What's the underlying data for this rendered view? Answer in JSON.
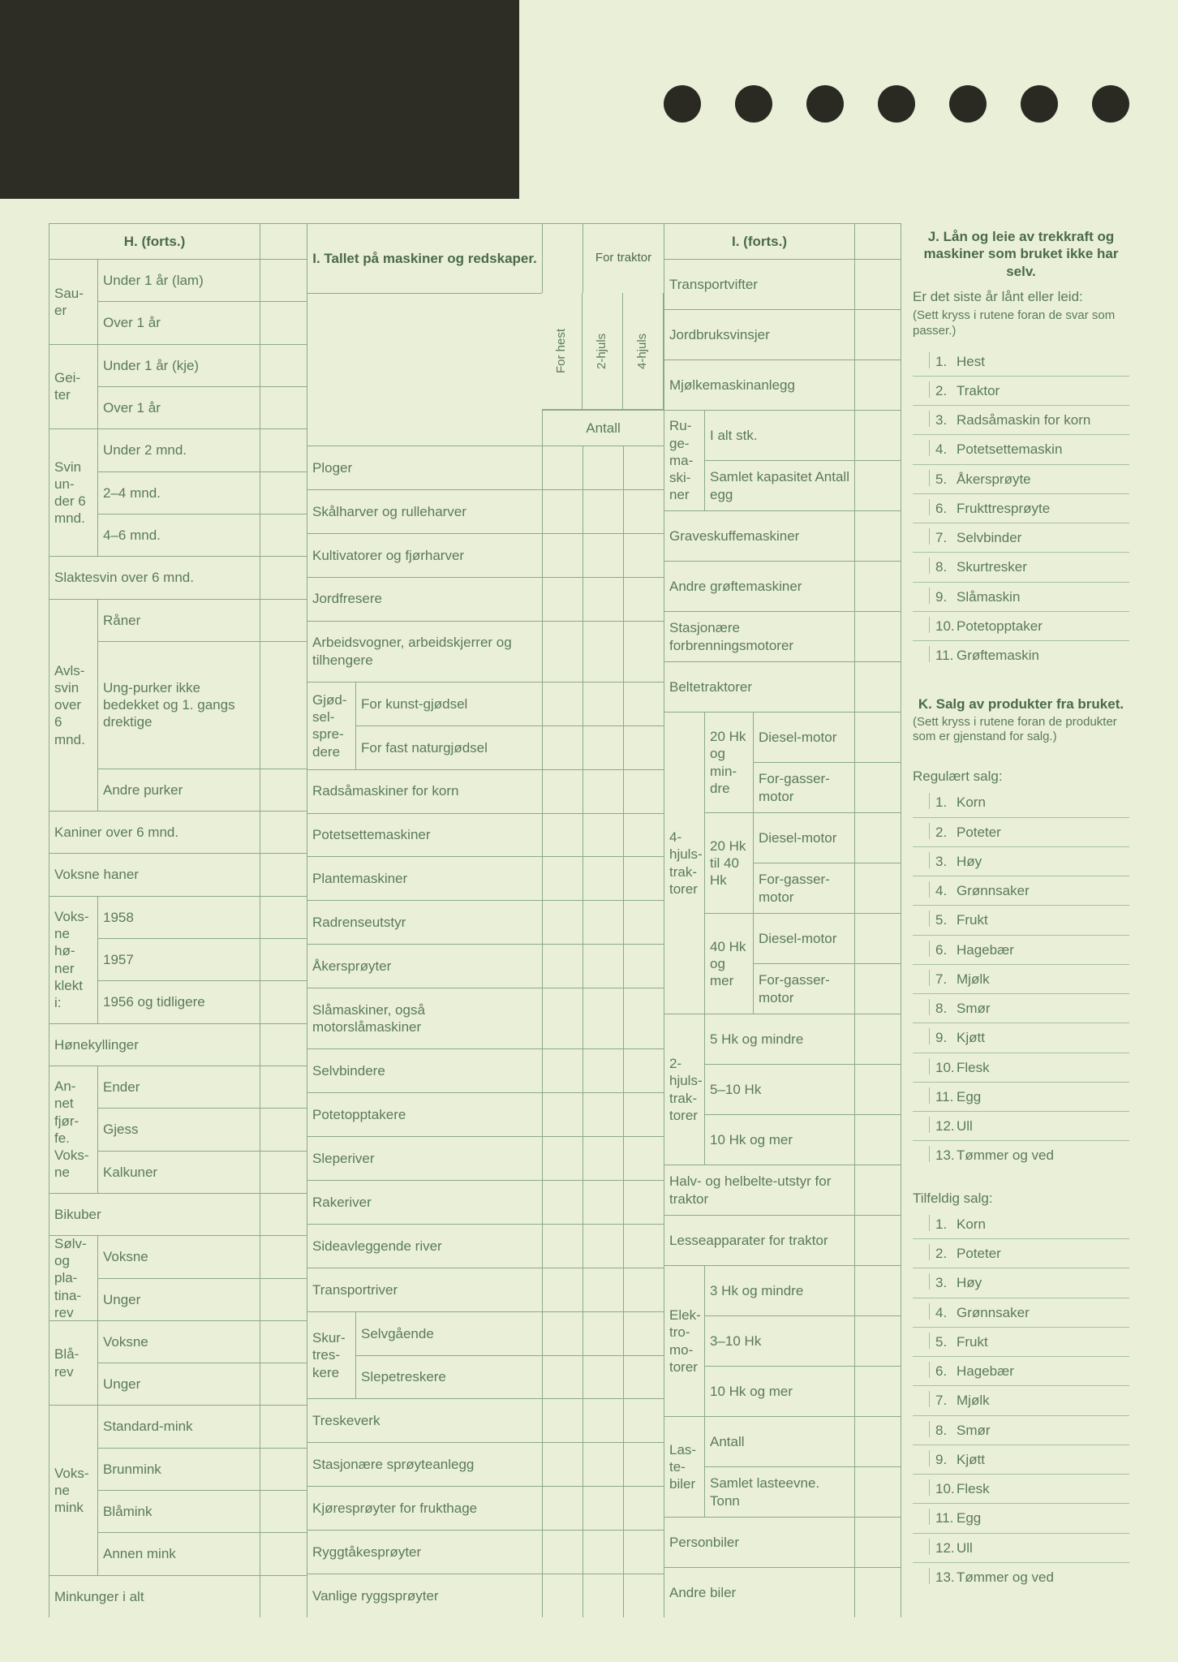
{
  "sections": {
    "H": {
      "title": "H. (forts.)"
    },
    "I": {
      "title": "I. Tallet på maskiner og redskaper.",
      "col_hest": "For hest",
      "for_traktor": "For traktor",
      "col_2hjuls": "2-hjuls",
      "col_4hjuls": "4-hjuls",
      "antall": "Antall"
    },
    "I2": {
      "title": "I. (forts.)"
    },
    "J": {
      "title": "J. Lån og leie av trekkraft og maskiner som bruket ikke har selv.",
      "sub": "Er det siste år lånt eller leid:",
      "hint": "(Sett kryss i rutene foran de svar som passer.)"
    },
    "K": {
      "title": "K. Salg av produkter fra bruket.",
      "hint": "(Sett kryss i rutene foran de produkter som er gjenstand for salg.)",
      "reg": "Regulært salg:",
      "til": "Tilfeldig salg:"
    }
  },
  "colH": [
    {
      "side": "Sau-er",
      "rows": [
        "Under 1 år (lam)",
        "Over 1 år"
      ]
    },
    {
      "side": "Gei-ter",
      "rows": [
        "Under 1 år (kje)",
        "Over 1 år"
      ]
    },
    {
      "side": "Svin un-der 6 mnd.",
      "rows": [
        "Under 2 mnd.",
        "2–4 mnd.",
        "4–6 mnd."
      ]
    },
    {
      "full": "Slaktesvin over 6 mnd."
    },
    {
      "side": "Avls-svin over 6 mnd.",
      "rows": [
        "Råner",
        "Ung-purker ikke bedekket og 1. gangs drektige",
        "Andre purker"
      ]
    },
    {
      "full": "Kaniner over 6 mnd."
    },
    {
      "full": "Voksne haner"
    },
    {
      "side": "Voks-ne hø-ner klekt i:",
      "rows": [
        "1958",
        "1957",
        "1956 og tidligere"
      ]
    },
    {
      "full": "Hønekyllinger"
    },
    {
      "side": "An-net fjør-fe. Voks-ne",
      "rows": [
        "Ender",
        "Gjess",
        "Kalkuner"
      ]
    },
    {
      "full": "Bikuber"
    },
    {
      "side": "Sølv- og pla-tina-rev",
      "rows": [
        "Voksne",
        "Unger"
      ]
    },
    {
      "side": "Blå-rev",
      "rows": [
        "Voksne",
        "Unger"
      ]
    },
    {
      "side": "Voks-ne mink",
      "rows": [
        "Standard-mink",
        "Brunmink",
        "Blåmink",
        "Annen mink"
      ]
    },
    {
      "full": "Minkunger i alt"
    }
  ],
  "colI": [
    "Ploger",
    "Skålharver og rulleharver",
    "Kultivatorer og fjørharver",
    "Jordfresere",
    "Arbeidsvogner, arbeidskjerrer og tilhengere",
    {
      "side": "Gjød-sel-spre-dere",
      "rows": [
        "For kunst-gjødsel",
        "For fast naturgjødsel"
      ]
    },
    "Radsåmaskiner for korn",
    "Potetsettemaskiner",
    "Plantemaskiner",
    "Radrenseutstyr",
    "Åkersprøyter",
    "Slåmaskiner, også motorslåmaskiner",
    "Selvbindere",
    "Potetopptakere",
    "Sleperiver",
    "Rakeriver",
    "Sideavleggende river",
    "Transportriver",
    {
      "side": "Skur-tres-kere",
      "rows": [
        "Selvgående",
        "Slepetreskere"
      ]
    },
    "Treskeverk",
    "Stasjonære sprøyteanlegg",
    "Kjøresprøyter for frukthage",
    "Ryggtåkesprøyter",
    "Vanlige ryggsprøyter"
  ],
  "colI2": [
    "Transportvifter",
    "Jordbruksvinsjer",
    "Mjølkemaskinanlegg",
    {
      "side": "Ru-ge-ma-ski-ner",
      "rows": [
        "I alt stk.",
        "Samlet kapasitet Antall egg"
      ]
    },
    "Graveskuffemaskiner",
    "Andre grøftemaskiner",
    "Stasjonære forbrenningsmotorer",
    "Beltetraktorer",
    {
      "side": "4-hjuls-trak-torer",
      "groups": [
        {
          "g": "20 Hk og min-dre",
          "rows": [
            "Diesel-motor",
            "For-gasser-motor"
          ]
        },
        {
          "g": "20 Hk til 40 Hk",
          "rows": [
            "Diesel-motor",
            "For-gasser-motor"
          ]
        },
        {
          "g": "40 Hk og mer",
          "rows": [
            "Diesel-motor",
            "For-gasser-motor"
          ]
        }
      ]
    },
    {
      "side": "2-hjuls-trak-torer",
      "rows": [
        "5 Hk og mindre",
        "5–10 Hk",
        "10 Hk og mer"
      ]
    },
    "Halv- og helbelte-utstyr for traktor",
    "Lesseapparater for traktor",
    {
      "side": "Elek-tro-mo-torer",
      "rows": [
        "3 Hk og mindre",
        "3–10 Hk",
        "10 Hk og mer"
      ]
    },
    {
      "side": "Las-te-biler",
      "rows": [
        "Antall",
        "Samlet lasteevne. Tonn"
      ]
    },
    "Personbiler",
    "Andre biler"
  ],
  "listJ": [
    "Hest",
    "Traktor",
    "Radsåmaskin for korn",
    "Potetsettemaskin",
    "Åkersprøyte",
    "Frukttresprøyte",
    "Selvbinder",
    "Skurtresker",
    "Slåmaskin",
    "Potetopptaker",
    "Grøftemaskin"
  ],
  "listK": [
    "Korn",
    "Poteter",
    "Høy",
    "Grønnsaker",
    "Frukt",
    "Hagebær",
    "Mjølk",
    "Smør",
    "Kjøtt",
    "Flesk",
    "Egg",
    "Ull",
    "Tømmer og ved"
  ]
}
